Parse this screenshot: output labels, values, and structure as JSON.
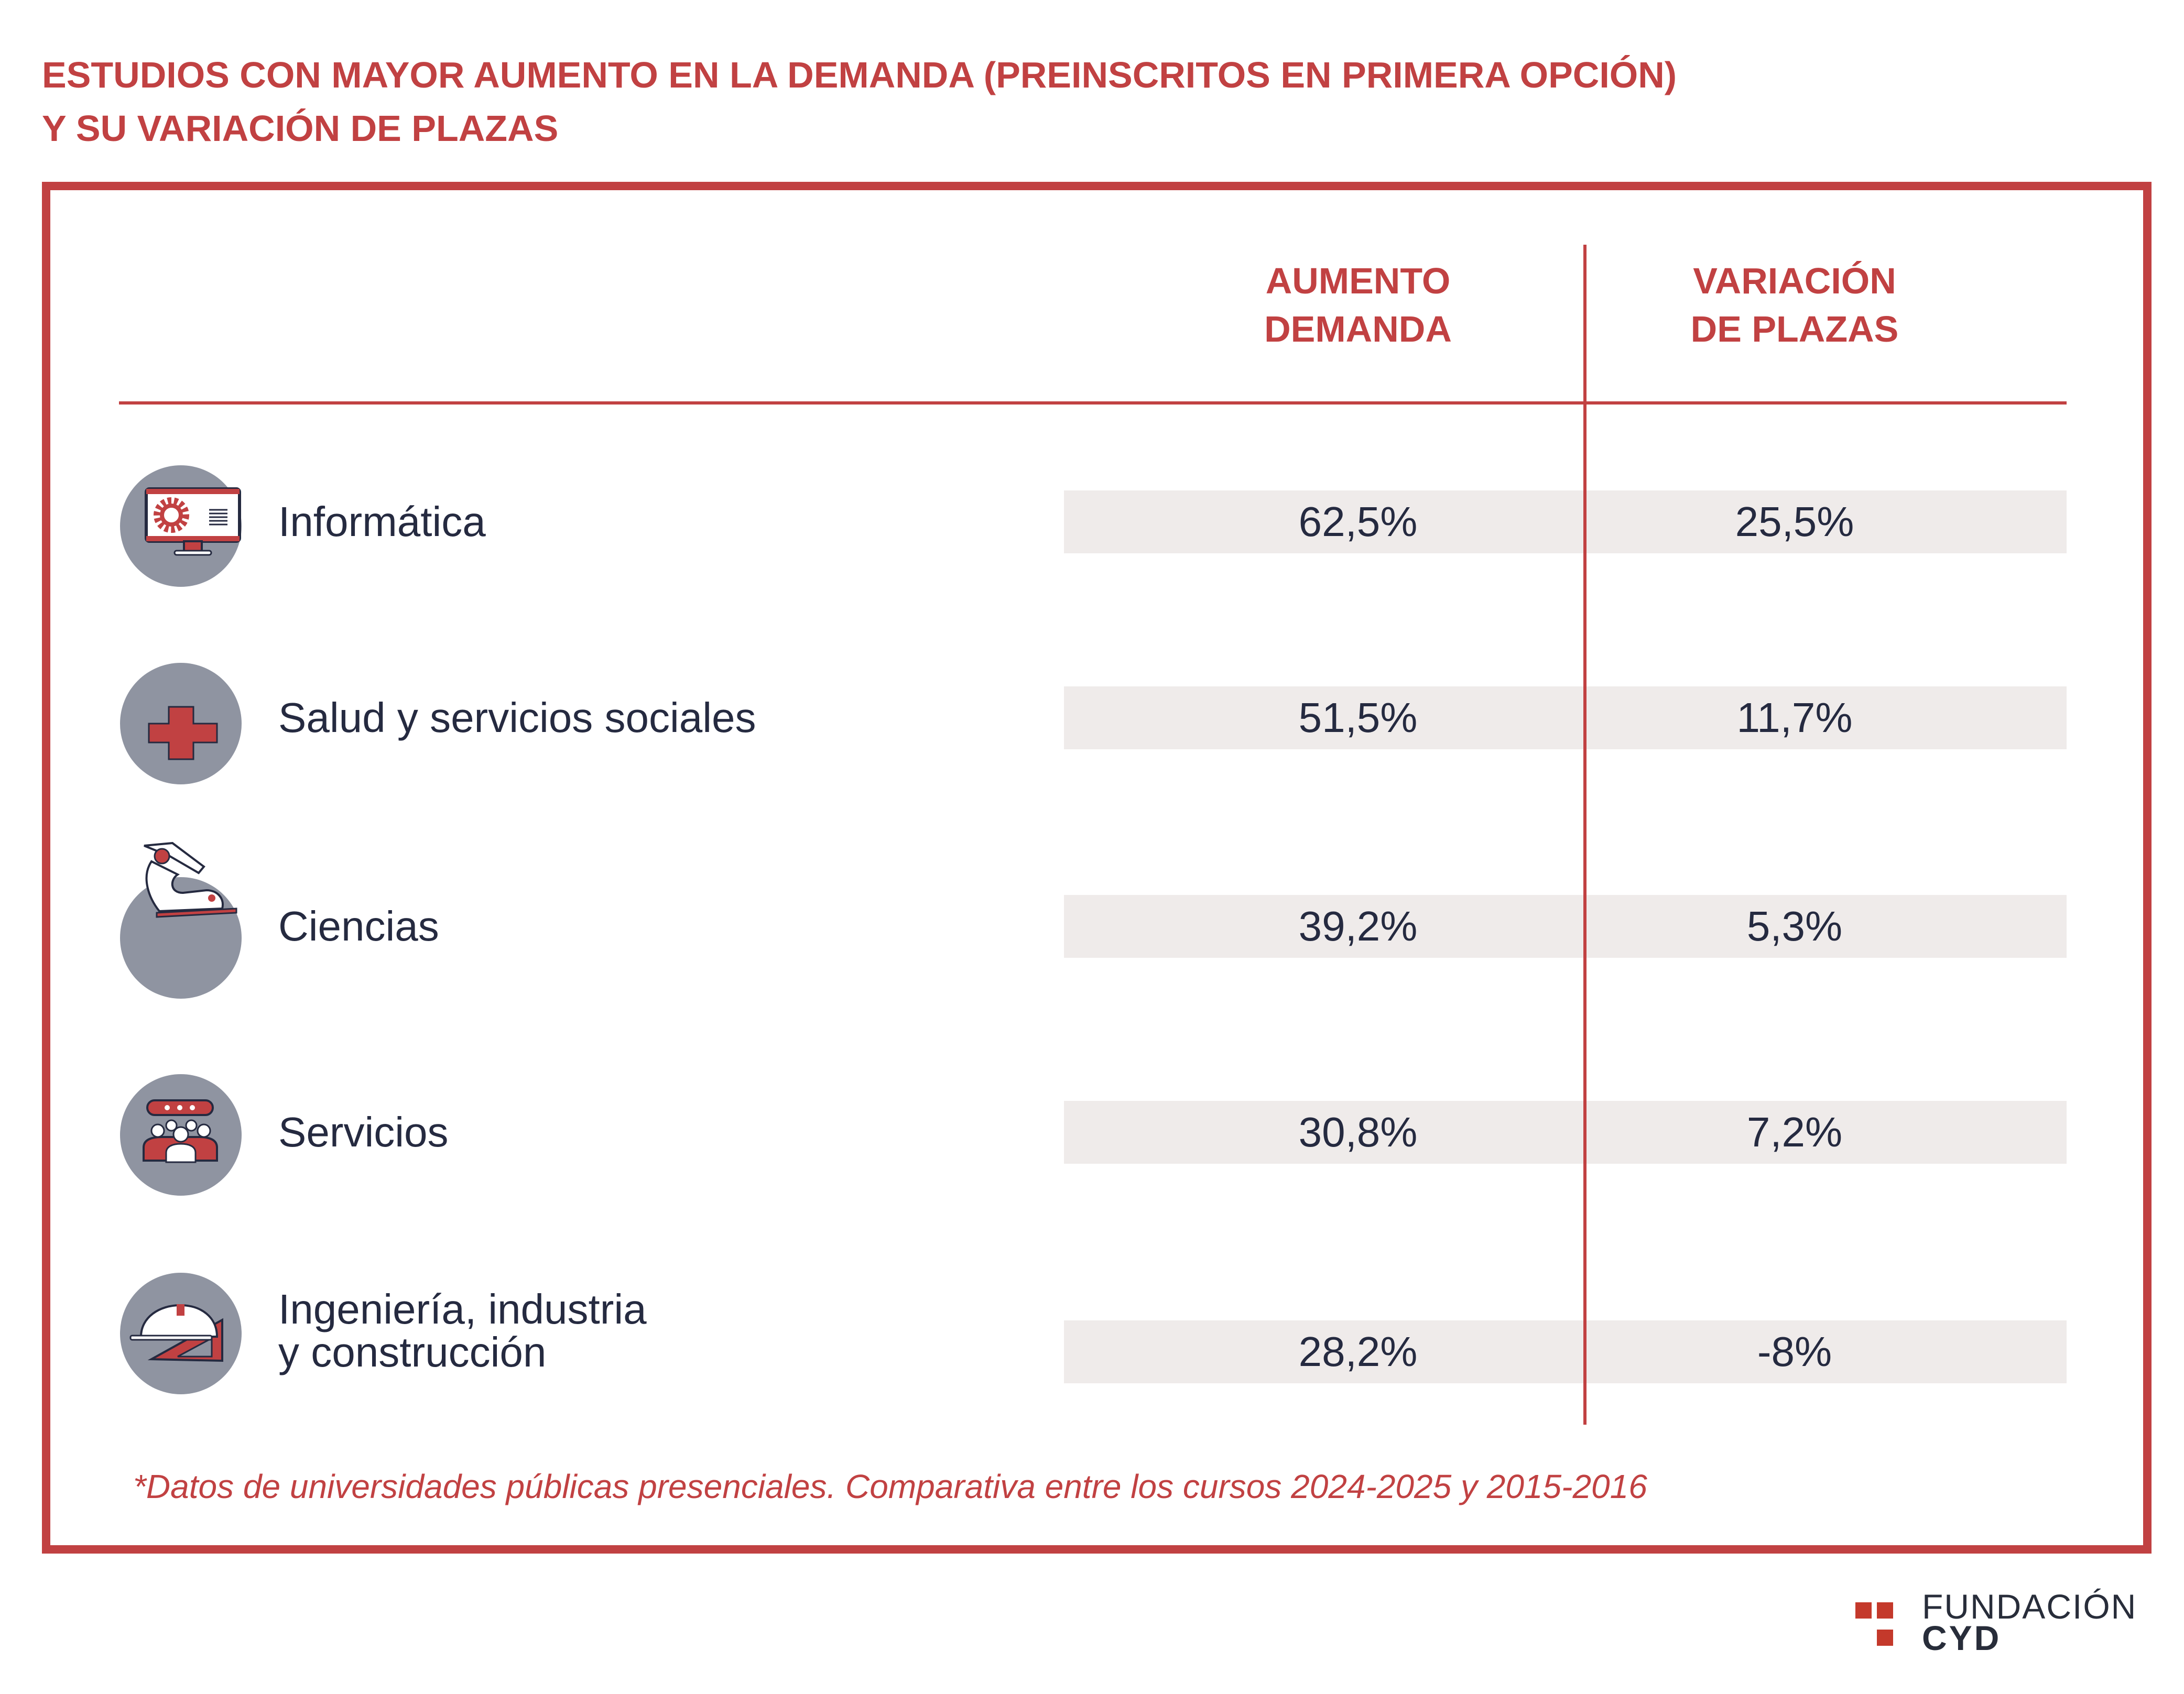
{
  "title": {
    "line1": "ESTUDIOS CON MAYOR AUMENTO EN LA DEMANDA (PREINSCRITOS EN PRIMERA OPCIÓN)",
    "line2": "Y SU VARIACIÓN DE PLAZAS"
  },
  "columns": {
    "demand": {
      "line1": "AUMENTO",
      "line2": "DEMANDA"
    },
    "places": {
      "line1": "VARIACIÓN",
      "line2": "DE PLAZAS"
    }
  },
  "rows": [
    {
      "icon": "computer-gear-icon",
      "label": "Informática",
      "label2": "",
      "demand": "62,5%",
      "places": "25,5%"
    },
    {
      "icon": "medical-cross-icon",
      "label": "Salud y servicios sociales",
      "label2": "",
      "demand": "51,5%",
      "places": "11,7%"
    },
    {
      "icon": "microscope-icon",
      "label": "Ciencias",
      "label2": "",
      "demand": "39,2%",
      "places": "5,3%"
    },
    {
      "icon": "people-group-icon",
      "label": "Servicios",
      "label2": "",
      "demand": "30,8%",
      "places": "7,2%"
    },
    {
      "icon": "helmet-ruler-icon",
      "label": "Ingeniería, industria",
      "label2": "y construcción",
      "demand": "28,2%",
      "places": "-8%"
    }
  ],
  "footnote": "*Datos de universidades públicas presenciales. Comparativa entre los cursos 2024-2025 y 2015-2016",
  "logo": {
    "line1": "FUNDACIÓN",
    "line2": "CYD"
  },
  "colors": {
    "accent": "#c14142",
    "text": "#252a40",
    "row_bg": "#efebea",
    "icon_bg": "#8f94a1"
  }
}
